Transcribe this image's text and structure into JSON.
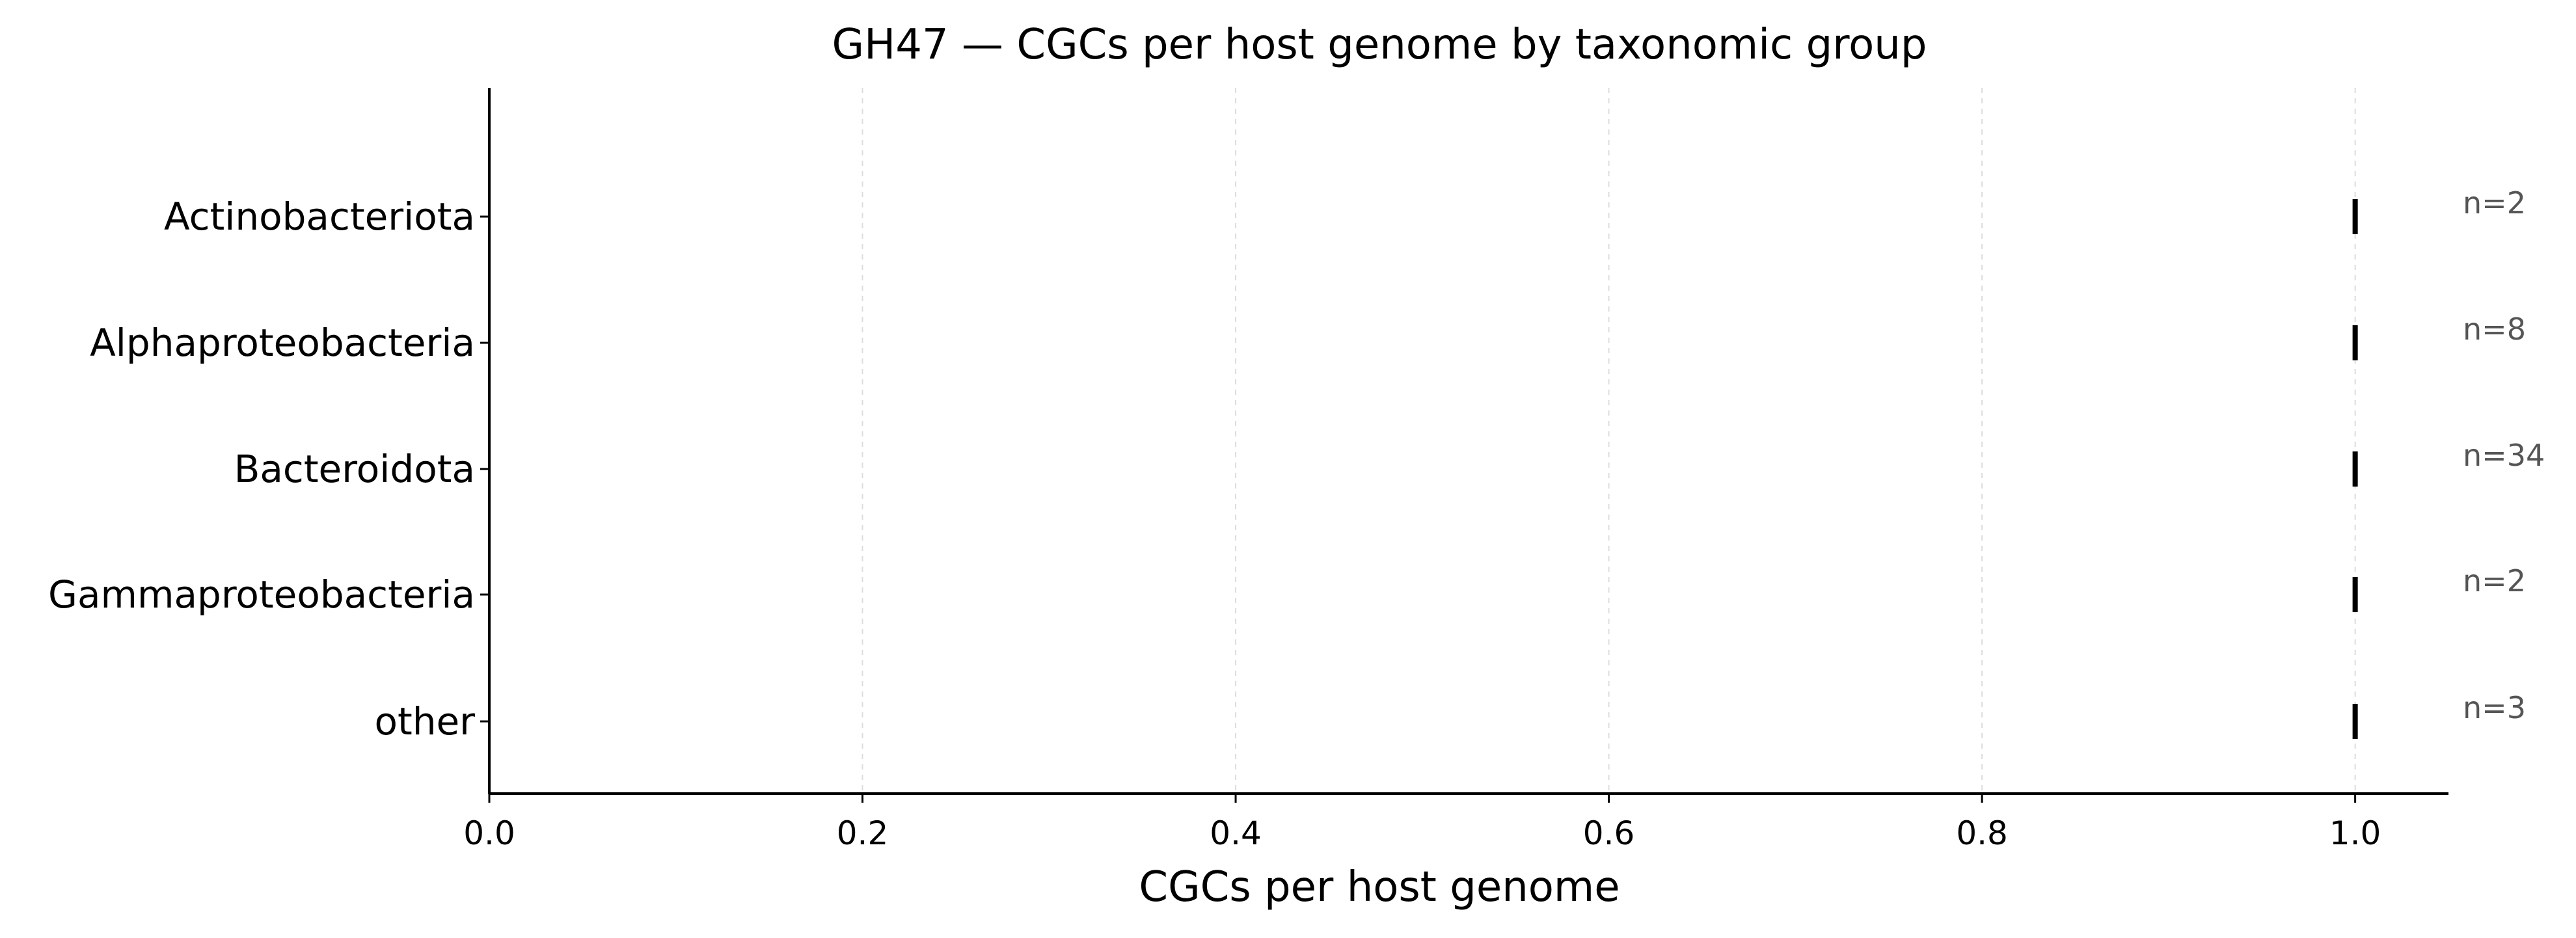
{
  "chart_data": {
    "type": "scatter",
    "title": "GH47 — CGCs per host genome by taxonomic group",
    "xlabel": "CGCs per host genome",
    "ylabel": "",
    "xlim": [
      0.0,
      1.05
    ],
    "x_ticks": [
      0.0,
      0.2,
      0.4,
      0.6,
      0.8,
      1.0
    ],
    "x_tick_labels": [
      "0.0",
      "0.2",
      "0.4",
      "0.6",
      "0.8",
      "1.0"
    ],
    "grid": "vertical dashed",
    "marker": "vertical tick",
    "categories": [
      "Actinobacteriota",
      "Alphaproteobacteria",
      "Bacteroidota",
      "Gammaproteobacteria",
      "other"
    ],
    "values": [
      1.0,
      1.0,
      1.0,
      1.0,
      1.0
    ],
    "counts": [
      "n=2",
      "n=8",
      "n=34",
      "n=2",
      "n=3"
    ],
    "colors": {
      "marker": "#000000",
      "axis": "#000000",
      "grid": "#dddddd",
      "count_text": "#555555"
    }
  }
}
